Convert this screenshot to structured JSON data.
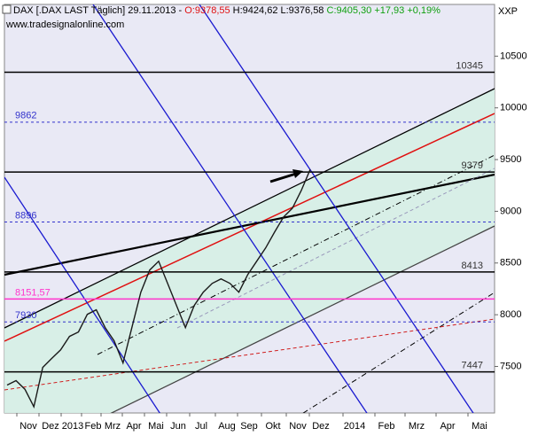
{
  "chart_data": {
    "type": "line",
    "header": {
      "instrument": "DAX [.DAX LAST Täglich] 29.11.2013 -",
      "open": "O:9378,55",
      "high_low": "H:9424,62 L:9376,58",
      "close": "C:9405,30 +17,93 +0,19%",
      "source": "www.tradesignalonline.com",
      "axis_code": "XXP"
    },
    "x_labels": [
      "Nov",
      "Dez",
      "2013",
      "Feb",
      "Mrz",
      "Apr",
      "Mai",
      "Jun",
      "Jul",
      "Aug",
      "Sep",
      "Okt",
      "Nov",
      "Dez",
      "2014",
      "Feb",
      "Mrz",
      "Apr",
      "Mai"
    ],
    "series": [
      {
        "name": "DAX",
        "color": "#1a1a1a",
        "values": [
          7320,
          7363,
          7280,
          7110,
          7490,
          7577,
          7660,
          7790,
          7833,
          8004,
          8047,
          7876,
          7748,
          7534,
          7876,
          8218,
          8432,
          8517,
          8303,
          8090,
          7876,
          8090,
          8218,
          8303,
          8346,
          8303,
          8218,
          8389,
          8517,
          8645,
          8799,
          8944,
          9030,
          9201,
          9405
        ]
      }
    ],
    "ylim": [
      7050,
      11000
    ],
    "yticks": [
      7500,
      8000,
      8500,
      9000,
      9500,
      10000,
      10500
    ],
    "levels": [
      {
        "value": 10345,
        "color": "#000000",
        "dashed": false
      },
      {
        "value": 9862,
        "color": "#3333cc",
        "dashed": true
      },
      {
        "value": 9379,
        "color": "#000000",
        "dashed": false
      },
      {
        "value": 8896,
        "color": "#3333cc",
        "dashed": true
      },
      {
        "value": 8413,
        "color": "#000000",
        "dashed": false
      },
      {
        "value": 8151.57,
        "label": "8151,57",
        "color": "#ff33cc",
        "dashed": false
      },
      {
        "value": 7930,
        "color": "#3333cc",
        "dashed": true
      },
      {
        "value": 7447,
        "color": "#000000",
        "dashed": false
      }
    ]
  }
}
